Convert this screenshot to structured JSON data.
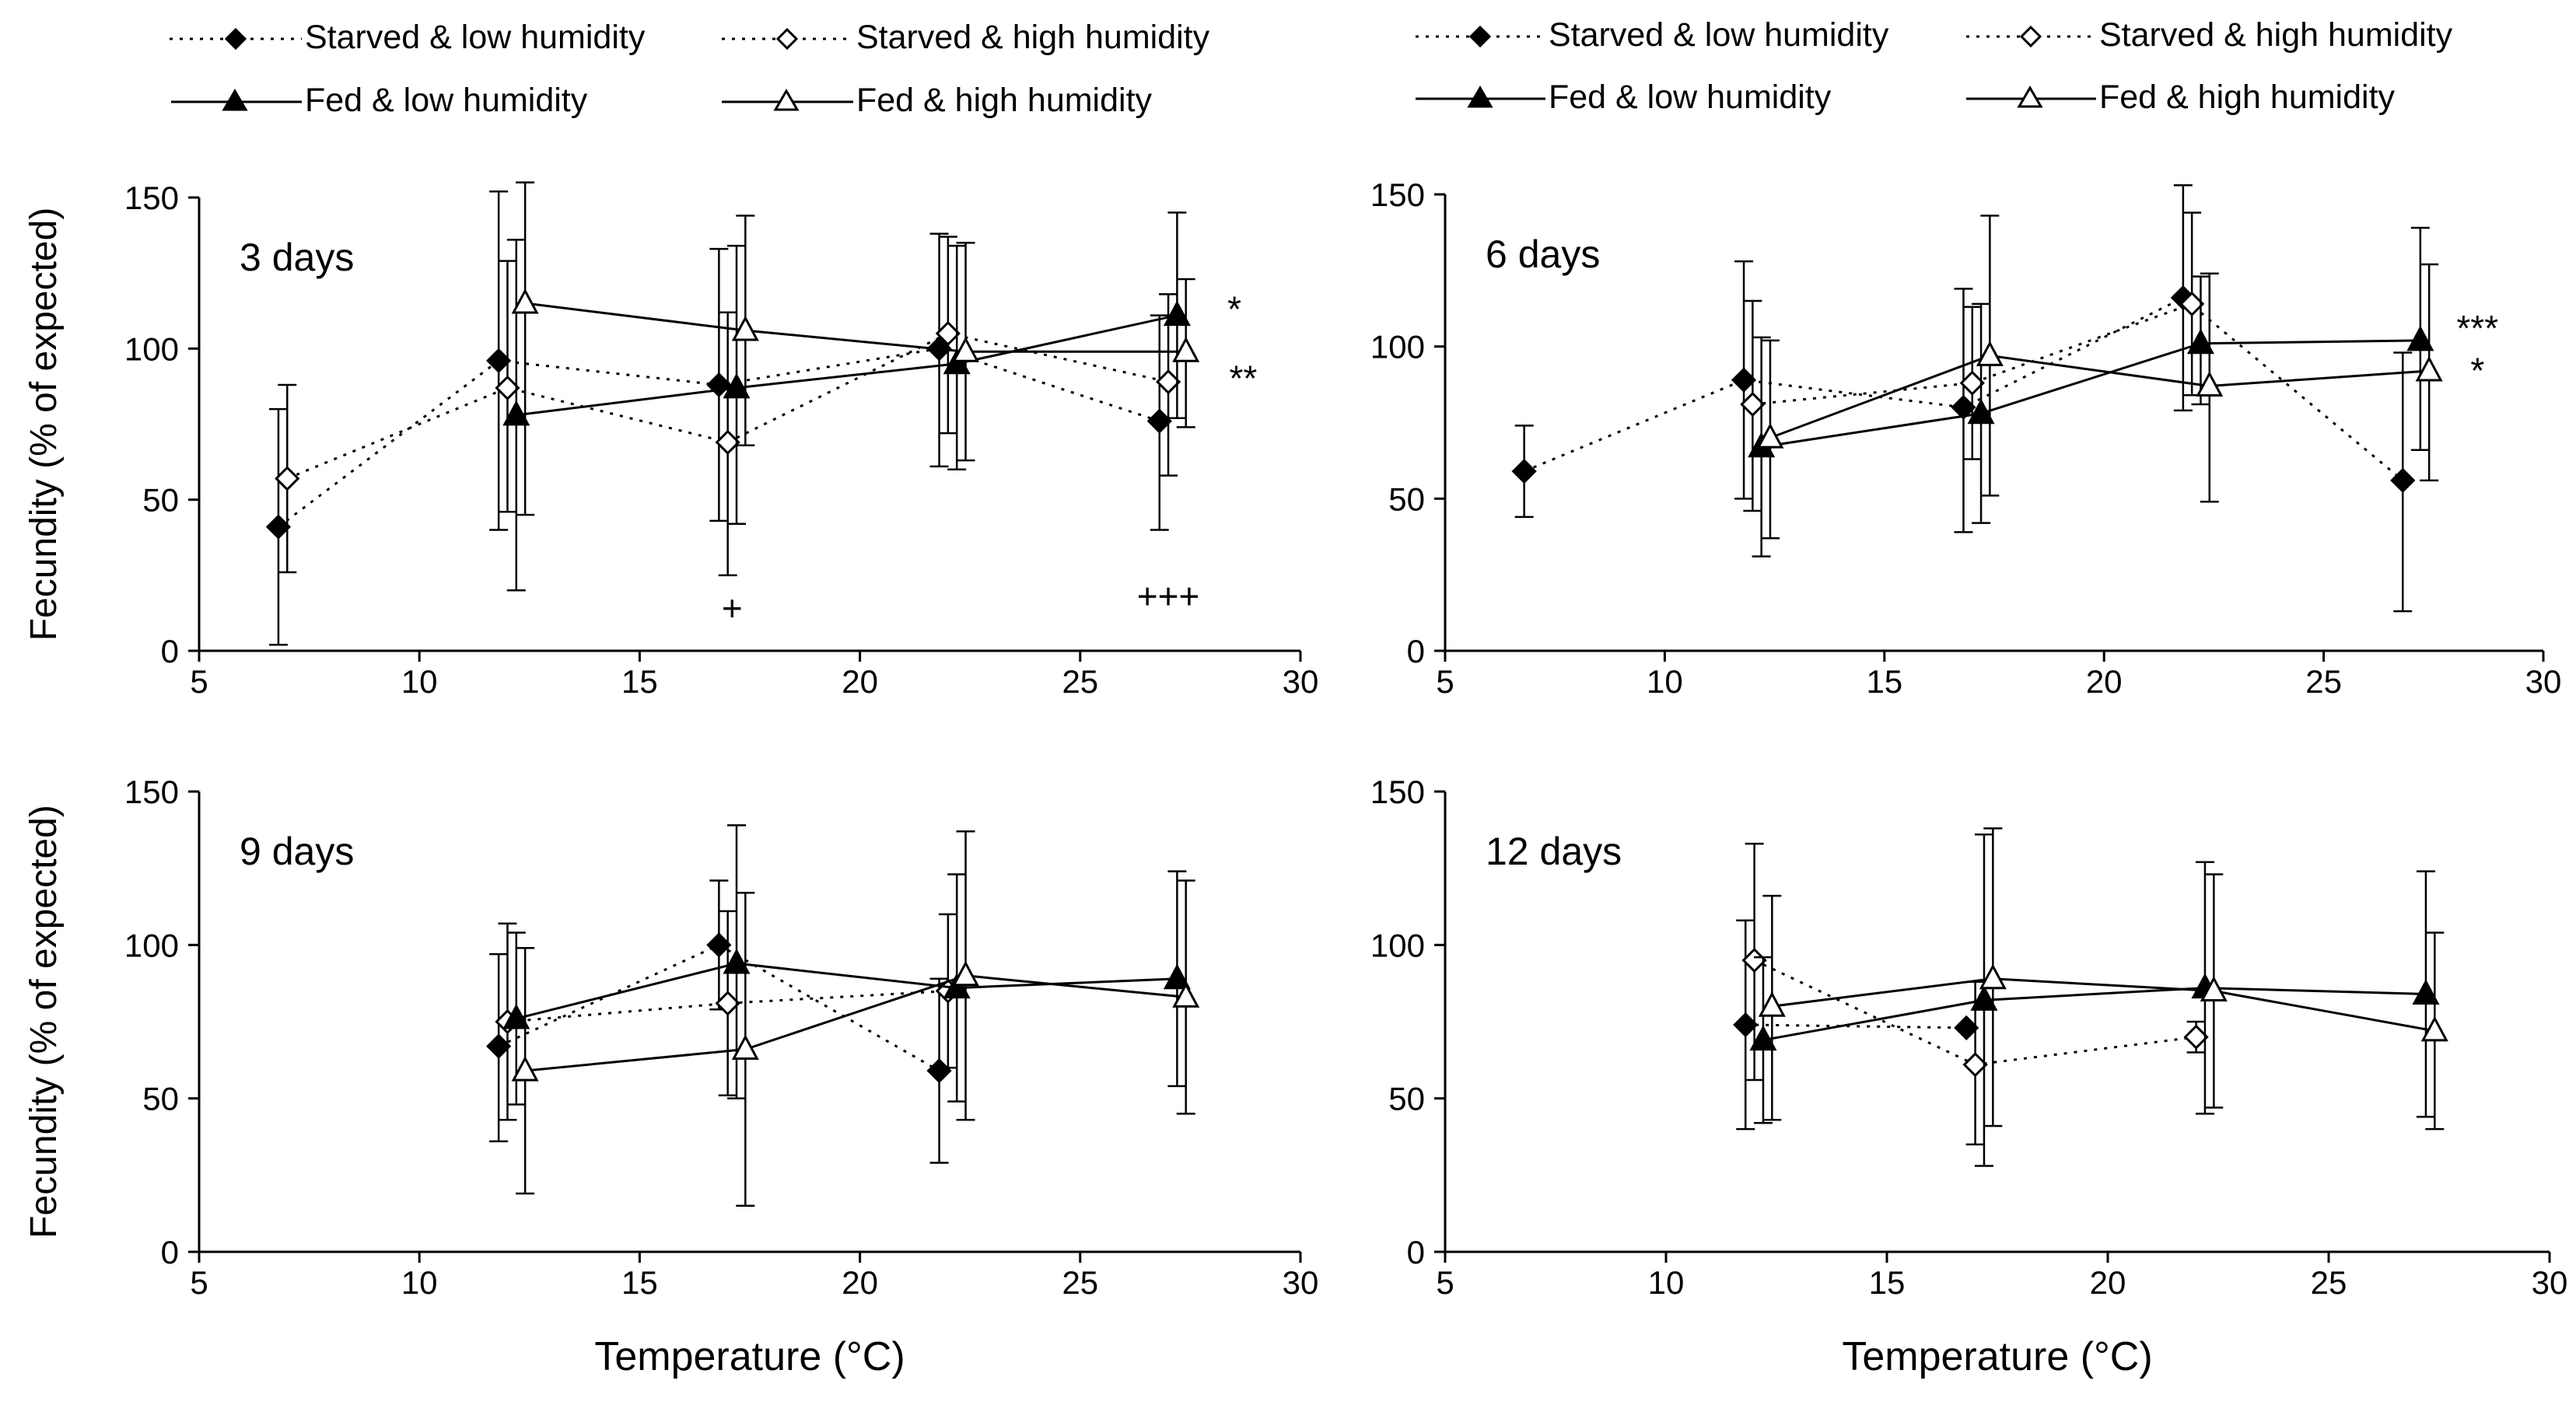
{
  "colors": {
    "ink": "#000000",
    "open_fill": "#ffffff"
  },
  "legend": [
    {
      "id": "starved_low",
      "label": "Starved & low humidity",
      "marker": "diamond-filled",
      "line": "dotted"
    },
    {
      "id": "starved_high",
      "label": "Starved & high humidity",
      "marker": "diamond-open",
      "line": "dotted"
    },
    {
      "id": "fed_low",
      "label": "Fed & low humidity",
      "marker": "triangle-filled",
      "line": "solid"
    },
    {
      "id": "fed_high",
      "label": "Fed & high humidity",
      "marker": "triangle-open",
      "line": "solid"
    }
  ],
  "chart_data": [
    {
      "type": "line",
      "title": "3 days",
      "xlabel": "",
      "ylabel": "Fecundity (% of expected)",
      "xlim": [
        5,
        30
      ],
      "ylim": [
        0,
        150
      ],
      "xticks": [
        5,
        10,
        15,
        20,
        25,
        30
      ],
      "yticks": [
        0,
        50,
        100,
        150
      ],
      "series": [
        {
          "name": "Starved & low humidity",
          "points": [
            {
              "x": 6.8,
              "y": 41,
              "lo": 2,
              "hi": 80
            },
            {
              "x": 11.8,
              "y": 96,
              "lo": 40,
              "hi": 152
            },
            {
              "x": 16.8,
              "y": 88,
              "lo": 43,
              "hi": 133
            },
            {
              "x": 21.8,
              "y": 100,
              "lo": 61,
              "hi": 138
            },
            {
              "x": 26.8,
              "y": 76,
              "lo": 40,
              "hi": 111
            }
          ]
        },
        {
          "name": "Starved & high humidity",
          "points": [
            {
              "x": 7.0,
              "y": 57,
              "lo": 26,
              "hi": 88
            },
            {
              "x": 12.0,
              "y": 87,
              "lo": 46,
              "hi": 129
            },
            {
              "x": 17.0,
              "y": 69,
              "lo": 25,
              "hi": 112
            },
            {
              "x": 22.0,
              "y": 105,
              "lo": 72,
              "hi": 137
            },
            {
              "x": 27.0,
              "y": 89,
              "lo": 58,
              "hi": 118
            }
          ]
        },
        {
          "name": "Fed & low humidity",
          "points": [
            {
              "x": 12.2,
              "y": 78,
              "lo": 20,
              "hi": 136
            },
            {
              "x": 17.2,
              "y": 87,
              "lo": 42,
              "hi": 134
            },
            {
              "x": 22.2,
              "y": 95,
              "lo": 60,
              "hi": 134
            },
            {
              "x": 27.2,
              "y": 111,
              "lo": 77,
              "hi": 145
            }
          ]
        },
        {
          "name": "Fed & high humidity",
          "points": [
            {
              "x": 12.4,
              "y": 115,
              "lo": 45,
              "hi": 155
            },
            {
              "x": 17.4,
              "y": 106,
              "lo": 68,
              "hi": 144
            },
            {
              "x": 22.4,
              "y": 99,
              "lo": 63,
              "hi": 135
            },
            {
              "x": 27.4,
              "y": 99,
              "lo": 74,
              "hi": 123
            }
          ]
        }
      ],
      "annotations": [
        {
          "text": "*",
          "x": 28.5,
          "y": 109
        },
        {
          "text": "**",
          "x": 28.7,
          "y": 86
        },
        {
          "text": "+",
          "x": 17.1,
          "y": 10
        },
        {
          "text": "+++",
          "x": 27.0,
          "y": 14
        }
      ]
    },
    {
      "type": "line",
      "title": "6 days",
      "xlabel": "",
      "ylabel": "",
      "xlim": [
        5,
        30
      ],
      "ylim": [
        0,
        150
      ],
      "xticks": [
        5,
        10,
        15,
        20,
        25,
        30
      ],
      "yticks": [
        0,
        50,
        100,
        150
      ],
      "series": [
        {
          "name": "Starved & low humidity",
          "points": [
            {
              "x": 6.8,
              "y": 59,
              "lo": 44,
              "hi": 74
            },
            {
              "x": 11.8,
              "y": 89,
              "lo": 50,
              "hi": 128
            },
            {
              "x": 16.8,
              "y": 80,
              "lo": 39,
              "hi": 119
            },
            {
              "x": 21.8,
              "y": 116,
              "lo": 79,
              "hi": 153
            },
            {
              "x": 26.8,
              "y": 56,
              "lo": 13,
              "hi": 98
            }
          ]
        },
        {
          "name": "Starved & high humidity",
          "points": [
            {
              "x": 12.0,
              "y": 81,
              "lo": 46,
              "hi": 115
            },
            {
              "x": 17.0,
              "y": 88,
              "lo": 63,
              "hi": 113
            },
            {
              "x": 22.0,
              "y": 114,
              "lo": 84,
              "hi": 144
            }
          ]
        },
        {
          "name": "Fed & low humidity",
          "points": [
            {
              "x": 12.2,
              "y": 67,
              "lo": 31,
              "hi": 103
            },
            {
              "x": 17.2,
              "y": 78,
              "lo": 42,
              "hi": 114
            },
            {
              "x": 22.2,
              "y": 101,
              "lo": 81,
              "hi": 123
            },
            {
              "x": 27.2,
              "y": 102,
              "lo": 66,
              "hi": 139
            }
          ]
        },
        {
          "name": "Fed & high humidity",
          "points": [
            {
              "x": 12.4,
              "y": 70,
              "lo": 37,
              "hi": 102
            },
            {
              "x": 17.4,
              "y": 97,
              "lo": 51,
              "hi": 143
            },
            {
              "x": 22.4,
              "y": 87,
              "lo": 49,
              "hi": 124
            },
            {
              "x": 27.4,
              "y": 92,
              "lo": 56,
              "hi": 127
            }
          ]
        }
      ],
      "annotations": [
        {
          "text": "***",
          "x": 28.5,
          "y": 102
        },
        {
          "text": "*",
          "x": 28.5,
          "y": 88
        }
      ]
    },
    {
      "type": "line",
      "title": "9 days",
      "xlabel": "Temperature (°C)",
      "ylabel": "Fecundity (% of expected)",
      "xlim": [
        5,
        30
      ],
      "ylim": [
        0,
        150
      ],
      "xticks": [
        5,
        10,
        15,
        20,
        25,
        30
      ],
      "yticks": [
        0,
        50,
        100,
        150
      ],
      "series": [
        {
          "name": "Starved & low humidity",
          "points": [
            {
              "x": 11.8,
              "y": 67,
              "lo": 36,
              "hi": 97
            },
            {
              "x": 16.8,
              "y": 100,
              "lo": 79,
              "hi": 121
            },
            {
              "x": 21.8,
              "y": 59,
              "lo": 29,
              "hi": 89
            }
          ]
        },
        {
          "name": "Starved & high humidity",
          "points": [
            {
              "x": 12.0,
              "y": 75,
              "lo": 43,
              "hi": 107
            },
            {
              "x": 17.0,
              "y": 81,
              "lo": 51,
              "hi": 111
            },
            {
              "x": 22.0,
              "y": 85,
              "lo": 60,
              "hi": 110
            }
          ]
        },
        {
          "name": "Fed & low humidity",
          "points": [
            {
              "x": 12.2,
              "y": 76,
              "lo": 48,
              "hi": 104
            },
            {
              "x": 17.2,
              "y": 94,
              "lo": 50,
              "hi": 139
            },
            {
              "x": 22.2,
              "y": 86,
              "lo": 49,
              "hi": 123
            },
            {
              "x": 27.2,
              "y": 89,
              "lo": 54,
              "hi": 124
            }
          ]
        },
        {
          "name": "Fed & high humidity",
          "points": [
            {
              "x": 12.4,
              "y": 59,
              "lo": 19,
              "hi": 99
            },
            {
              "x": 17.4,
              "y": 66,
              "lo": 15,
              "hi": 117
            },
            {
              "x": 22.4,
              "y": 90,
              "lo": 43,
              "hi": 137
            },
            {
              "x": 27.4,
              "y": 83,
              "lo": 45,
              "hi": 121
            }
          ]
        }
      ],
      "annotations": []
    },
    {
      "type": "line",
      "title": "12 days",
      "xlabel": "Temperature (°C)",
      "ylabel": "",
      "xlim": [
        5,
        30
      ],
      "ylim": [
        0,
        150
      ],
      "xticks": [
        5,
        10,
        15,
        20,
        25,
        30
      ],
      "yticks": [
        0,
        50,
        100,
        150
      ],
      "series": [
        {
          "name": "Starved & low humidity",
          "points": [
            {
              "x": 11.8,
              "y": 74,
              "lo": 40,
              "hi": 108
            },
            {
              "x": 16.8,
              "y": 73
            }
          ]
        },
        {
          "name": "Starved & high humidity",
          "points": [
            {
              "x": 12.0,
              "y": 95,
              "lo": 56,
              "hi": 133
            },
            {
              "x": 17.0,
              "y": 61,
              "lo": 35,
              "hi": 88
            },
            {
              "x": 22.0,
              "y": 70,
              "lo": 65,
              "hi": 75
            }
          ]
        },
        {
          "name": "Fed & low humidity",
          "points": [
            {
              "x": 12.2,
              "y": 69,
              "lo": 42,
              "hi": 96
            },
            {
              "x": 17.2,
              "y": 82,
              "lo": 28,
              "hi": 136
            },
            {
              "x": 22.2,
              "y": 86,
              "lo": 45,
              "hi": 127
            },
            {
              "x": 27.2,
              "y": 84,
              "lo": 44,
              "hi": 124
            }
          ]
        },
        {
          "name": "Fed & high humidity",
          "points": [
            {
              "x": 12.4,
              "y": 80,
              "lo": 43,
              "hi": 116
            },
            {
              "x": 17.4,
              "y": 89,
              "lo": 41,
              "hi": 138
            },
            {
              "x": 22.4,
              "y": 85,
              "lo": 47,
              "hi": 123
            },
            {
              "x": 27.4,
              "y": 72,
              "lo": 40,
              "hi": 104
            }
          ]
        }
      ],
      "annotations": []
    }
  ]
}
